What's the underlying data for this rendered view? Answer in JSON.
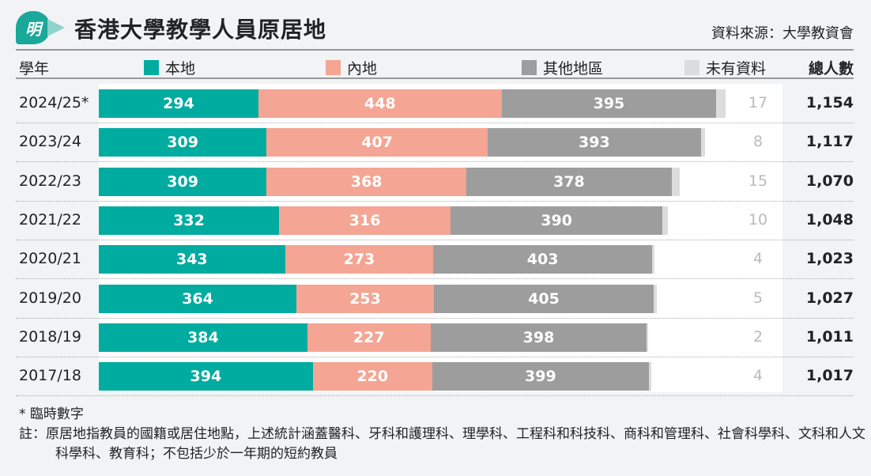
{
  "header": {
    "logo_text": "明",
    "title": "香港大學教學人員原居地",
    "source": "資料來源：大學教資會"
  },
  "columns": {
    "year": "學年",
    "total": "總人數"
  },
  "colors": {
    "local": "#00aba0",
    "mainland": "#f4a593",
    "other": "#9d9d9d",
    "unknown": "#dcdcdc"
  },
  "chart_data": {
    "type": "bar",
    "orientation": "horizontal",
    "stacked": true,
    "title": "香港大學教學人員原居地",
    "categories": [
      "2024/25*",
      "2023/24",
      "2022/23",
      "2021/22",
      "2020/21",
      "2019/20",
      "2018/19",
      "2017/18"
    ],
    "series": [
      {
        "name": "本地",
        "values": [
          294,
          309,
          309,
          332,
          343,
          364,
          384,
          394
        ]
      },
      {
        "name": "內地",
        "values": [
          448,
          407,
          368,
          316,
          273,
          253,
          227,
          220
        ]
      },
      {
        "name": "其他地區",
        "values": [
          395,
          393,
          378,
          390,
          403,
          405,
          398,
          399
        ]
      },
      {
        "name": "未有資料",
        "values": [
          17,
          8,
          15,
          10,
          4,
          5,
          2,
          4
        ]
      }
    ],
    "totals": [
      "1,154",
      "1,117",
      "1,070",
      "1,048",
      "1,023",
      "1,027",
      "1,011",
      "1,017"
    ]
  },
  "notes": {
    "provisional": "* 臨時數字",
    "note": "註：原居地指教員的國籍或居住地點，上述統計涵蓋醫科、牙科和護理科、理學科、工程科和科技科、商科和管理科、社會科學科、文科和人文科學科、教育科；不包括少於一年期的短約教員"
  }
}
